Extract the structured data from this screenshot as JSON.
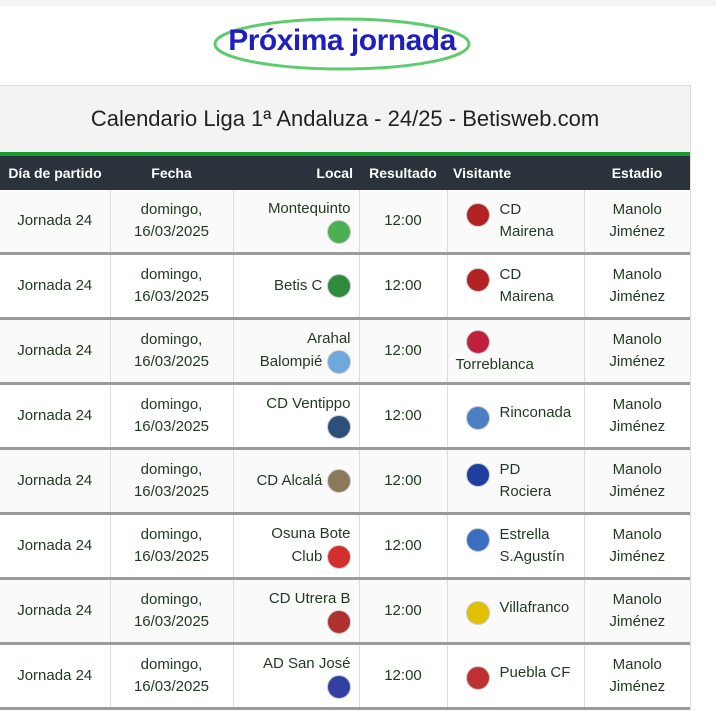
{
  "heading": "Próxima jornada",
  "caption": "Calendario Liga 1ª Andaluza - 24/25 - Betisweb.com",
  "columns": [
    "Día de partido",
    "Fecha",
    "Local",
    "Resultado",
    "Visitante",
    "Estadio"
  ],
  "rows": [
    {
      "jornada": "Jornada 24",
      "fecha": "domingo, 16/03/2025",
      "local": "Montequinto",
      "local_color": "#4caf50",
      "resultado": "12:00",
      "visitante": "CD Mairena",
      "vis_color": "#b22222",
      "estadio": "Manolo Jiménez"
    },
    {
      "jornada": "Jornada 24",
      "fecha": "domingo, 16/03/2025",
      "local": "Betis C",
      "local_color": "#2e8b3a",
      "resultado": "12:00",
      "visitante": "CD Mairena",
      "vis_color": "#b22222",
      "estadio": "Manolo Jiménez"
    },
    {
      "jornada": "Jornada 24",
      "fecha": "domingo, 16/03/2025",
      "local": "Arahal Balompié",
      "local_color": "#6fa8dc",
      "resultado": "12:00",
      "visitante": "Torreblanca",
      "vis_color": "#c0203a",
      "estadio": "Manolo Jiménez"
    },
    {
      "jornada": "Jornada 24",
      "fecha": "domingo, 16/03/2025",
      "local": "CD Ventippo",
      "local_color": "#2c4f7c",
      "resultado": "12:00",
      "visitante": "Rinconada",
      "vis_color": "#4a7fc1",
      "estadio": "Manolo Jiménez"
    },
    {
      "jornada": "Jornada 24",
      "fecha": "domingo, 16/03/2025",
      "local": "CD Alcalá",
      "local_color": "#8a7a5a",
      "resultado": "12:00",
      "visitante": "PD Rociera",
      "vis_color": "#1f3f9f",
      "estadio": "Manolo Jiménez"
    },
    {
      "jornada": "Jornada 24",
      "fecha": "domingo, 16/03/2025",
      "local": "Osuna Bote Club",
      "local_color": "#d32f2f",
      "resultado": "12:00",
      "visitante": "Estrella S.Agustín",
      "vis_color": "#3a6fbf",
      "estadio": "Manolo Jiménez"
    },
    {
      "jornada": "Jornada 24",
      "fecha": "domingo, 16/03/2025",
      "local": "CD Utrera B",
      "local_color": "#b03030",
      "resultado": "12:00",
      "visitante": "Villafranco",
      "vis_color": "#e0c000",
      "estadio": "Manolo Jiménez"
    },
    {
      "jornada": "Jornada 24",
      "fecha": "domingo, 16/03/2025",
      "local": "AD San José",
      "local_color": "#3040a0",
      "resultado": "12:00",
      "visitante": "Puebla CF",
      "vis_color": "#c03030",
      "estadio": "Manolo Jiménez"
    }
  ]
}
